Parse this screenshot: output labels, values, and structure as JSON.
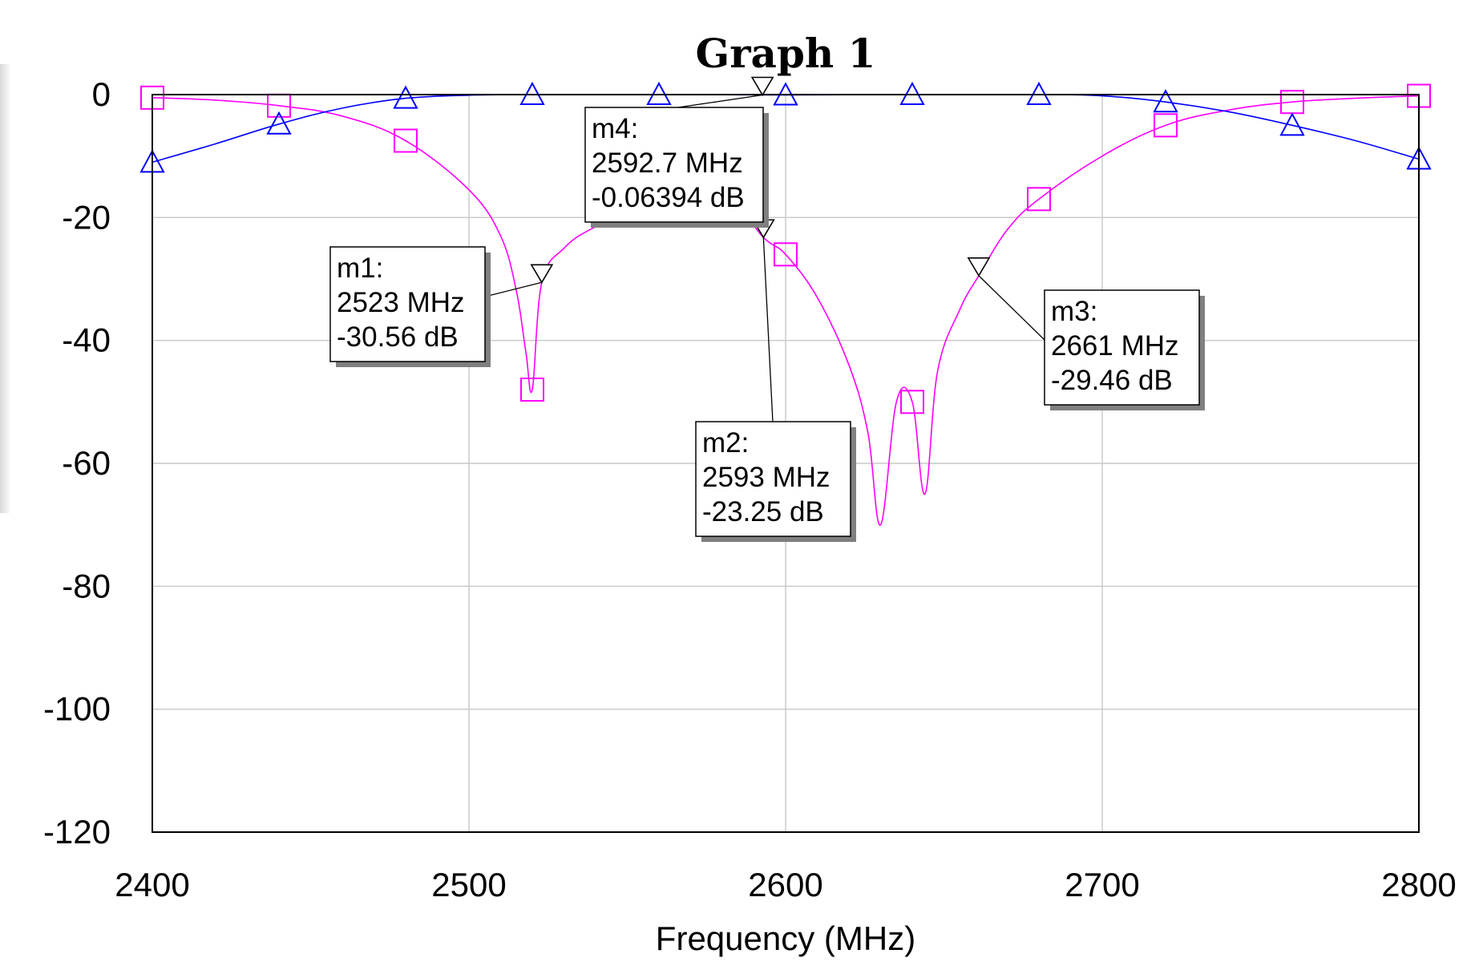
{
  "chart_data": {
    "type": "line",
    "title": "Graph 1",
    "xlabel": "Frequency (MHz)",
    "ylabel": "",
    "xlim": [
      2400,
      2800
    ],
    "ylim": [
      -120,
      0
    ],
    "xticks": [
      "2400",
      "2500",
      "2600",
      "2700",
      "2800"
    ],
    "yticks": [
      "0",
      "-20",
      "-40",
      "-60",
      "-80",
      "-100",
      "-120"
    ],
    "grid": true,
    "series": [
      {
        "color": "#ff00ff",
        "symbol": "square",
        "x": [
          2400,
          2420,
          2440,
          2460,
          2480,
          2500,
          2510,
          2515,
          2518,
          2520,
          2523,
          2530,
          2540,
          2560,
          2580,
          2593,
          2600,
          2610,
          2620,
          2626,
          2630,
          2635,
          2640,
          2644,
          2648,
          2655,
          2661,
          2670,
          2680,
          2700,
          2720,
          2740,
          2760,
          2780,
          2800
        ],
        "y": [
          -0.5,
          -0.9,
          -1.8,
          -3.5,
          -7.5,
          -15.5,
          -23,
          -32,
          -42,
          -48,
          -30.56,
          -25,
          -21.5,
          -17,
          -16,
          -23.25,
          -26,
          -33,
          -44,
          -55,
          -70,
          -50,
          -50,
          -65,
          -45,
          -35,
          -29.46,
          -22,
          -17,
          -10,
          -5,
          -2.5,
          -1.2,
          -0.6,
          -0.2
        ]
      },
      {
        "color": "#0000ff",
        "symbol": "triangle",
        "x": [
          2400,
          2420,
          2440,
          2460,
          2480,
          2500,
          2520,
          2560,
          2600,
          2640,
          2680,
          2700,
          2720,
          2740,
          2760,
          2780,
          2800
        ],
        "y": [
          -11,
          -8,
          -4.8,
          -2.2,
          -0.6,
          -0.1,
          0,
          0,
          -0.06,
          0,
          0,
          -0.2,
          -1.2,
          -2.8,
          -5,
          -7.5,
          -10.5
        ]
      }
    ],
    "markers": [
      {
        "label": "m1:",
        "freq_text": "2523 MHz",
        "value_text": "-30.56 dB",
        "x": 2523,
        "y": -30.56
      },
      {
        "label": "m2:",
        "freq_text": "2593 MHz",
        "value_text": "-23.25 dB",
        "x": 2593,
        "y": -23.25
      },
      {
        "label": "m3:",
        "freq_text": "2661 MHz",
        "value_text": "-29.46 dB",
        "x": 2661,
        "y": -29.46
      },
      {
        "label": "m4:",
        "freq_text": "2592.7 MHz",
        "value_text": "-0.06394 dB",
        "x": 2592.7,
        "y": -0.06394
      }
    ]
  }
}
